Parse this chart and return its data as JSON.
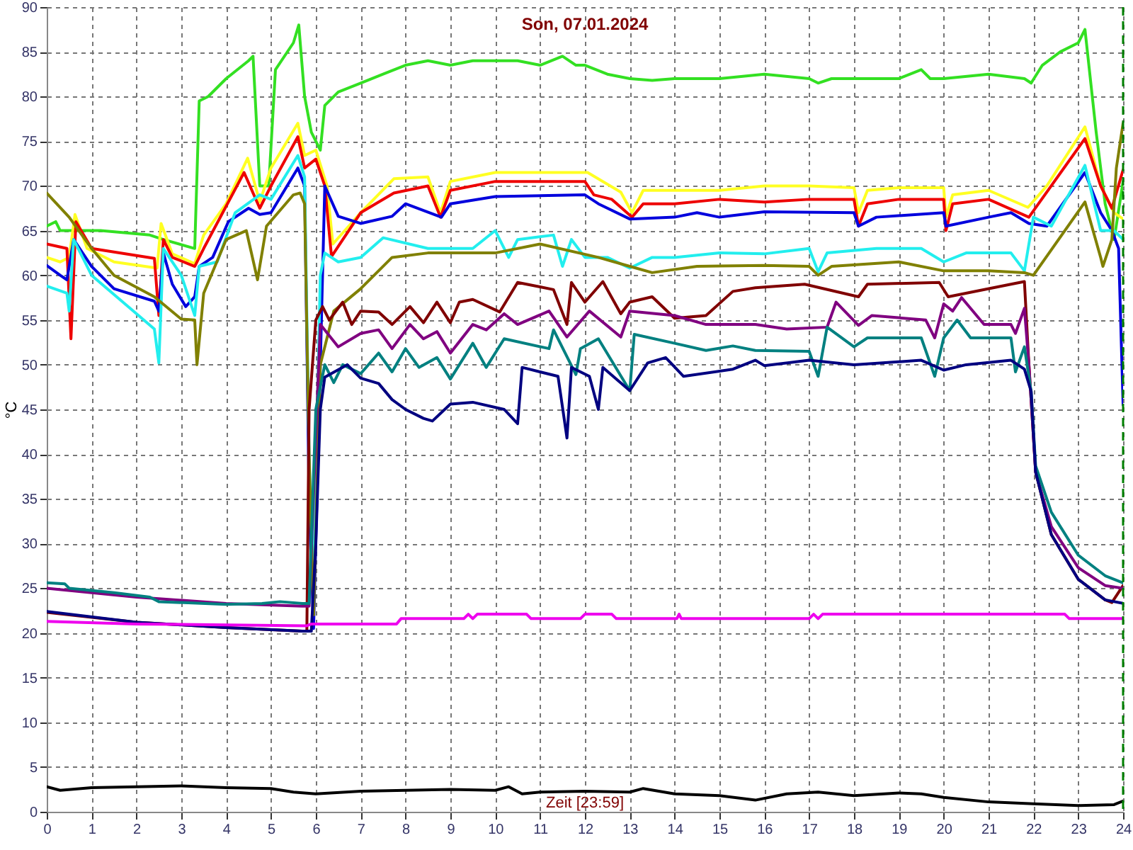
{
  "chart_data": {
    "type": "line",
    "title": "Son, 07.01.2024",
    "ylabel": "°C",
    "annotations": [
      "Zeit [23:59]"
    ],
    "xlim": [
      0,
      24
    ],
    "xticks": [
      0,
      1,
      2,
      3,
      4,
      5,
      6,
      7,
      8,
      9,
      10,
      11,
      12,
      13,
      14,
      15,
      16,
      17,
      18,
      19,
      20,
      21,
      22,
      23,
      24
    ],
    "ylim": [
      0,
      90
    ],
    "yticks": [
      0,
      5,
      10,
      15,
      20,
      25,
      30,
      35,
      40,
      45,
      50,
      55,
      60,
      65,
      70,
      75,
      80,
      85,
      90
    ],
    "grid": true,
    "line_style": "solid",
    "marker": "none",
    "ref_lines": [
      {
        "axis": "x",
        "value": 24,
        "color": "#008000",
        "line_style": "dashed"
      }
    ],
    "series": [
      {
        "color": "#33e022",
        "x": [
          0,
          0.2,
          0.3,
          1.2,
          2.3,
          2.6,
          3.3,
          3.4,
          3.6,
          4.0,
          4.5,
          4.6,
          4.75,
          4.95,
          5.1,
          5.5,
          5.62,
          5.75,
          5.9,
          6.1,
          6.2,
          6.5,
          7,
          7.5,
          8,
          8.5,
          9,
          9.5,
          10,
          10.5,
          11,
          11.5,
          11.8,
          12,
          12.5,
          13,
          13.5,
          14,
          15,
          16,
          17,
          17.2,
          17.5,
          18,
          19,
          19.5,
          19.7,
          20,
          21,
          21.8,
          21.95,
          22.2,
          22.6,
          23,
          23.15,
          23.4,
          23.6,
          23.8,
          24
        ],
        "values": [
          65.5,
          66,
          65,
          65,
          64.5,
          64,
          63,
          79.5,
          80,
          82,
          84,
          84.5,
          70,
          70,
          83,
          86,
          88,
          80,
          76,
          74,
          79,
          80.5,
          81.5,
          82.5,
          83.5,
          84,
          83.5,
          84,
          84,
          84,
          83.5,
          84.5,
          83.5,
          83.5,
          82.5,
          82,
          81.8,
          82,
          82,
          82.5,
          82,
          81.5,
          82,
          82,
          82,
          83,
          82,
          82,
          82.5,
          82,
          81.5,
          83.5,
          85,
          86,
          87.5,
          76,
          68,
          64,
          70.5
        ]
      },
      {
        "color": "#ffff22",
        "x": [
          0,
          0.3,
          0.5,
          0.63,
          0.9,
          1.5,
          2.46,
          2.55,
          2.8,
          3.3,
          3.5,
          4.0,
          4.48,
          4.75,
          5.0,
          5.6,
          5.75,
          6.0,
          6.25,
          6.38,
          7.0,
          7.74,
          8.5,
          8.78,
          9.0,
          10,
          11,
          12.06,
          12.8,
          13.05,
          13.3,
          14,
          15,
          16,
          17,
          18.0,
          18.1,
          18.3,
          19,
          20.0,
          20.05,
          20.2,
          21,
          21.88,
          22.3,
          23.15,
          23.5,
          23.8,
          24
        ],
        "values": [
          62,
          61.5,
          62,
          66.8,
          63,
          61.5,
          60.8,
          65.8,
          62.4,
          61.3,
          64.5,
          68,
          73.1,
          68.2,
          72,
          77,
          73.4,
          74,
          70,
          63.5,
          67,
          70.8,
          71,
          67,
          70.5,
          71.5,
          71.5,
          71.5,
          69.3,
          67,
          69.5,
          69.5,
          69.5,
          70,
          70,
          69.8,
          67,
          69.5,
          69.8,
          69.8,
          66.5,
          69,
          69.5,
          67.6,
          70,
          76.6,
          70,
          67,
          66.3
        ]
      },
      {
        "color": "#ee0000",
        "x": [
          0,
          0.45,
          0.54,
          0.65,
          1.0,
          2.4,
          2.5,
          2.6,
          2.8,
          3.3,
          3.5,
          4.4,
          4.75,
          5.0,
          5.6,
          5.75,
          6.0,
          6.2,
          6.35,
          7.0,
          7.74,
          8.5,
          8.78,
          9.0,
          10,
          12,
          12.2,
          12.6,
          13.05,
          13.3,
          14,
          15,
          16,
          17,
          18.0,
          18.1,
          18.3,
          19,
          20.0,
          20.05,
          20.2,
          21,
          21.9,
          23.15,
          23.5,
          23.75,
          24
        ],
        "values": [
          63.5,
          63,
          52.9,
          66,
          63,
          61.9,
          55.5,
          64,
          62,
          61,
          63,
          71.5,
          67.5,
          70,
          75.5,
          72,
          73,
          70,
          62.1,
          67,
          69.2,
          70,
          66.5,
          69.5,
          70.5,
          70.5,
          69,
          68.5,
          66.5,
          68,
          68,
          68.5,
          68.2,
          68.5,
          68.5,
          65.5,
          68,
          68.5,
          68.5,
          65,
          68,
          68.5,
          66.5,
          75.3,
          70,
          67.5,
          71.8
        ]
      },
      {
        "color": "#0000dd",
        "x": [
          0,
          0.3,
          0.45,
          0.6,
          1.0,
          1.5,
          2.4,
          2.5,
          2.6,
          2.8,
          3.1,
          3.3,
          3.4,
          3.7,
          4.05,
          4.5,
          4.75,
          5.0,
          5.6,
          5.75,
          5.85,
          5.95,
          6.05,
          6.2,
          6.5,
          7.0,
          7.7,
          8.0,
          8.8,
          9.0,
          10,
          12,
          12.3,
          13,
          14,
          14.5,
          15,
          16,
          18.0,
          18.1,
          18.5,
          20.0,
          20.05,
          21,
          21.5,
          21.9,
          22.3,
          23.15,
          23.5,
          23.75,
          23.9,
          24
        ],
        "values": [
          61.1,
          60,
          59.5,
          64,
          61,
          58.5,
          57.1,
          56,
          62.5,
          59,
          56.5,
          57.6,
          61,
          62,
          66,
          67.5,
          66.8,
          67,
          72,
          70,
          35,
          20.5,
          40,
          70,
          66.6,
          65.8,
          66.6,
          68,
          66.5,
          68,
          68.8,
          69,
          68,
          66.3,
          66.5,
          67,
          66.5,
          67.1,
          67,
          65.5,
          66.5,
          67,
          65.5,
          66.5,
          67,
          65.8,
          65.5,
          71.5,
          67,
          65,
          63,
          45.5
        ]
      },
      {
        "color": "#22eeee",
        "x": [
          0,
          0.45,
          0.5,
          0.6,
          1.0,
          2.4,
          2.5,
          2.6,
          3.0,
          3.3,
          3.4,
          3.8,
          4.2,
          4.75,
          5.0,
          5.6,
          5.75,
          5.85,
          5.95,
          6.1,
          6.2,
          6.5,
          7.0,
          7.5,
          8.5,
          9.5,
          10,
          10.3,
          10.5,
          11.3,
          11.5,
          11.7,
          12,
          12.5,
          13,
          13.5,
          14,
          15,
          16,
          17,
          17.2,
          17.4,
          18.5,
          19.5,
          20,
          20.5,
          21.5,
          21.8,
          22.0,
          22.4,
          23.15,
          23.5,
          23.8,
          24
        ],
        "values": [
          58.8,
          58,
          56,
          64,
          60,
          54,
          50.2,
          63,
          60,
          55.5,
          61,
          61.5,
          67,
          69,
          68.5,
          73.4,
          71,
          40,
          25,
          60,
          62.5,
          61.5,
          62,
          64.2,
          63,
          63,
          65,
          62,
          64,
          64.5,
          61,
          64,
          62,
          62,
          60.8,
          62,
          62,
          62.5,
          62.4,
          63,
          60.4,
          62.5,
          63,
          63,
          61.5,
          62.5,
          62.5,
          60.5,
          66.5,
          65.5,
          72.3,
          65,
          65,
          64
        ]
      },
      {
        "color": "#808000",
        "x": [
          0,
          0.5,
          1.0,
          1.5,
          2.4,
          3.0,
          3.3,
          3.35,
          3.5,
          4.0,
          4.45,
          4.7,
          4.9,
          5.5,
          5.65,
          5.75,
          5.85,
          5.95,
          6.1,
          6.4,
          7.0,
          7.7,
          8.5,
          10,
          11,
          12.3,
          13,
          13.5,
          14.5,
          16,
          17,
          17.2,
          17.5,
          19,
          20,
          21,
          21.8,
          22,
          23.15,
          23.5,
          23.55,
          23.75,
          23.85,
          24
        ],
        "values": [
          69.2,
          66.5,
          63,
          60,
          57.6,
          55.1,
          55,
          50,
          58,
          64,
          65,
          59.5,
          65.5,
          69,
          69.2,
          68,
          40,
          22,
          50,
          56,
          58.5,
          62,
          62.5,
          62.5,
          63.5,
          62,
          61,
          60.3,
          61,
          61.1,
          61,
          60,
          61,
          61.5,
          60.5,
          60.5,
          60.3,
          60,
          68.2,
          62,
          61,
          64,
          72,
          77
        ]
      },
      {
        "color": "#800000",
        "x": [
          0,
          2,
          4,
          5.7,
          5.8,
          5.85,
          6.0,
          6.15,
          6.3,
          6.6,
          6.8,
          7.0,
          7.4,
          7.7,
          8.1,
          8.4,
          8.7,
          9.0,
          9.2,
          9.5,
          10.1,
          10.5,
          11.0,
          11.3,
          11.6,
          11.7,
          12.0,
          12.4,
          12.8,
          13.0,
          13.5,
          14.0,
          14.7,
          15.3,
          15.8,
          16.9,
          18.1,
          18.3,
          19.9,
          20.1,
          21.5,
          21.8,
          21.9,
          22.05,
          22.4,
          23.0,
          23.6,
          23.75,
          24
        ],
        "values": [
          22.3,
          21.2,
          20.6,
          20.2,
          20.2,
          45,
          55,
          56.5,
          55,
          57,
          54.5,
          56,
          55.9,
          54.5,
          56.5,
          54.7,
          57,
          54.7,
          57,
          57.3,
          55.9,
          59.2,
          58.7,
          58.4,
          54.5,
          59.2,
          57,
          59.3,
          55.7,
          57,
          57.6,
          55.2,
          55.5,
          58.2,
          58.6,
          59,
          57.6,
          59,
          59.2,
          57.6,
          59,
          59.3,
          50,
          38,
          31,
          26,
          23.7,
          23.4,
          25.3
        ]
      },
      {
        "color": "#800080",
        "x": [
          0,
          2,
          4,
          5.7,
          5.85,
          6.1,
          6.5,
          7.0,
          7.4,
          7.7,
          8.1,
          8.4,
          8.7,
          9.0,
          9.5,
          9.8,
          10.2,
          10.5,
          11.2,
          11.6,
          12.1,
          12.8,
          13.0,
          14.0,
          14.7,
          15.8,
          16.5,
          17.4,
          17.6,
          18.1,
          18.4,
          19.6,
          19.8,
          20.0,
          20.2,
          20.4,
          20.9,
          21.5,
          21.6,
          21.8,
          21.9,
          22.05,
          22.4,
          23.0,
          23.6,
          24
        ],
        "values": [
          25,
          24,
          23.3,
          23,
          23,
          54.5,
          52,
          53.5,
          53.9,
          51.8,
          54.5,
          52.9,
          53.7,
          51.3,
          54.5,
          53.9,
          55.7,
          54.5,
          56,
          53.1,
          56,
          53.1,
          56,
          55.5,
          54.5,
          54.5,
          54,
          54.2,
          57,
          54.4,
          55.5,
          55,
          53,
          56.8,
          56,
          57.5,
          54.5,
          54.5,
          53.5,
          56.3,
          50,
          38,
          31.9,
          27.3,
          25.3,
          25
        ]
      },
      {
        "color": "#008080",
        "x": [
          0,
          0.4,
          0.5,
          1.5,
          2.3,
          2.5,
          4.0,
          4.8,
          5.2,
          5.7,
          5.85,
          6.0,
          6.2,
          6.4,
          6.6,
          7.0,
          7.4,
          7.7,
          8.0,
          8.3,
          8.7,
          9.0,
          9.5,
          9.8,
          10.2,
          11.2,
          11.3,
          11.8,
          11.9,
          12.3,
          13.0,
          13.1,
          14.0,
          14.7,
          15.3,
          15.8,
          17.0,
          17.2,
          17.4,
          18.0,
          18.3,
          19.5,
          19.8,
          20.0,
          20.3,
          20.6,
          21.5,
          21.6,
          21.8,
          21.95,
          22.05,
          22.4,
          23.0,
          23.6,
          24
        ],
        "values": [
          25.6,
          25.5,
          25,
          24.5,
          24,
          23.5,
          23.2,
          23.3,
          23.5,
          23.3,
          23.3,
          45,
          50,
          48,
          50,
          49,
          51.3,
          49.2,
          51.8,
          49.7,
          50.8,
          48.4,
          52.4,
          49.7,
          52.9,
          51.8,
          53.9,
          48.9,
          51.8,
          52.9,
          47.1,
          53.4,
          52.4,
          51.6,
          52.1,
          51.6,
          51.5,
          48.7,
          54.2,
          52,
          53,
          53,
          48.7,
          53,
          55,
          53,
          53,
          49.2,
          52,
          47,
          38.7,
          33.5,
          28.7,
          26.4,
          25.6
        ]
      },
      {
        "color": "#000080",
        "x": [
          0,
          2,
          4,
          5.7,
          5.9,
          6.0,
          6.1,
          6.2,
          6.7,
          7.0,
          7.4,
          7.7,
          8.0,
          8.4,
          8.6,
          9.0,
          9.5,
          10.2,
          10.5,
          10.6,
          11.4,
          11.6,
          11.7,
          12.1,
          12.3,
          12.4,
          13.0,
          13.4,
          13.8,
          14.2,
          15.3,
          15.8,
          16,
          17.0,
          18.0,
          19.5,
          20.0,
          20.5,
          21.5,
          21.8,
          21.95,
          22.05,
          22.4,
          23.0,
          23.6,
          24
        ],
        "values": [
          22.4,
          21.2,
          20.6,
          20.2,
          20.2,
          30,
          45,
          48.6,
          50,
          48.5,
          47.9,
          46.1,
          45,
          44,
          43.7,
          45.6,
          45.8,
          45,
          43.4,
          49.7,
          48.7,
          41.8,
          49.7,
          48.7,
          45,
          49.7,
          47.1,
          50.2,
          50.8,
          48.7,
          49.5,
          50.5,
          49.9,
          50.5,
          50,
          50.5,
          49.4,
          50,
          50.5,
          49.5,
          47,
          38,
          31,
          26,
          23.7,
          23.3
        ]
      },
      {
        "color": "#ee00ee",
        "x": [
          0,
          2,
          5.8,
          5.9,
          6,
          7.8,
          7.9,
          9.3,
          9.4,
          9.5,
          9.6,
          9.7,
          10.7,
          10.8,
          11.9,
          12.0,
          12.6,
          12.7,
          12.8,
          14.05,
          14.1,
          14.15,
          17.0,
          17.1,
          17.2,
          17.3,
          22.7,
          22.8,
          22.9,
          24
        ],
        "values": [
          21.3,
          21,
          20.8,
          21,
          21,
          21,
          21.6,
          21.6,
          22.1,
          21.6,
          22.1,
          22.1,
          22.1,
          21.6,
          21.6,
          22.1,
          22.1,
          21.6,
          21.6,
          21.6,
          22.1,
          21.6,
          21.6,
          22.1,
          21.6,
          22.1,
          22.1,
          21.6,
          21.6,
          21.6
        ]
      },
      {
        "color": "#000000",
        "x": [
          0,
          0.3,
          1,
          2,
          3,
          4,
          5,
          5.5,
          6,
          7,
          8,
          9,
          10,
          10.3,
          10.6,
          11,
          12,
          13,
          13.3,
          14,
          15,
          15.8,
          16.5,
          17.2,
          18,
          19,
          19.5,
          20,
          21,
          22,
          23,
          23.8,
          24
        ],
        "values": [
          2.8,
          2.4,
          2.7,
          2.8,
          2.9,
          2.7,
          2.6,
          2.2,
          2.0,
          2.3,
          2.4,
          2.5,
          2.4,
          2.8,
          2.0,
          2.2,
          2.3,
          2.2,
          2.6,
          2.0,
          1.8,
          1.3,
          2.0,
          2.2,
          1.8,
          2.1,
          2.0,
          1.6,
          1.1,
          0.9,
          0.7,
          0.8,
          1.2
        ]
      }
    ]
  }
}
